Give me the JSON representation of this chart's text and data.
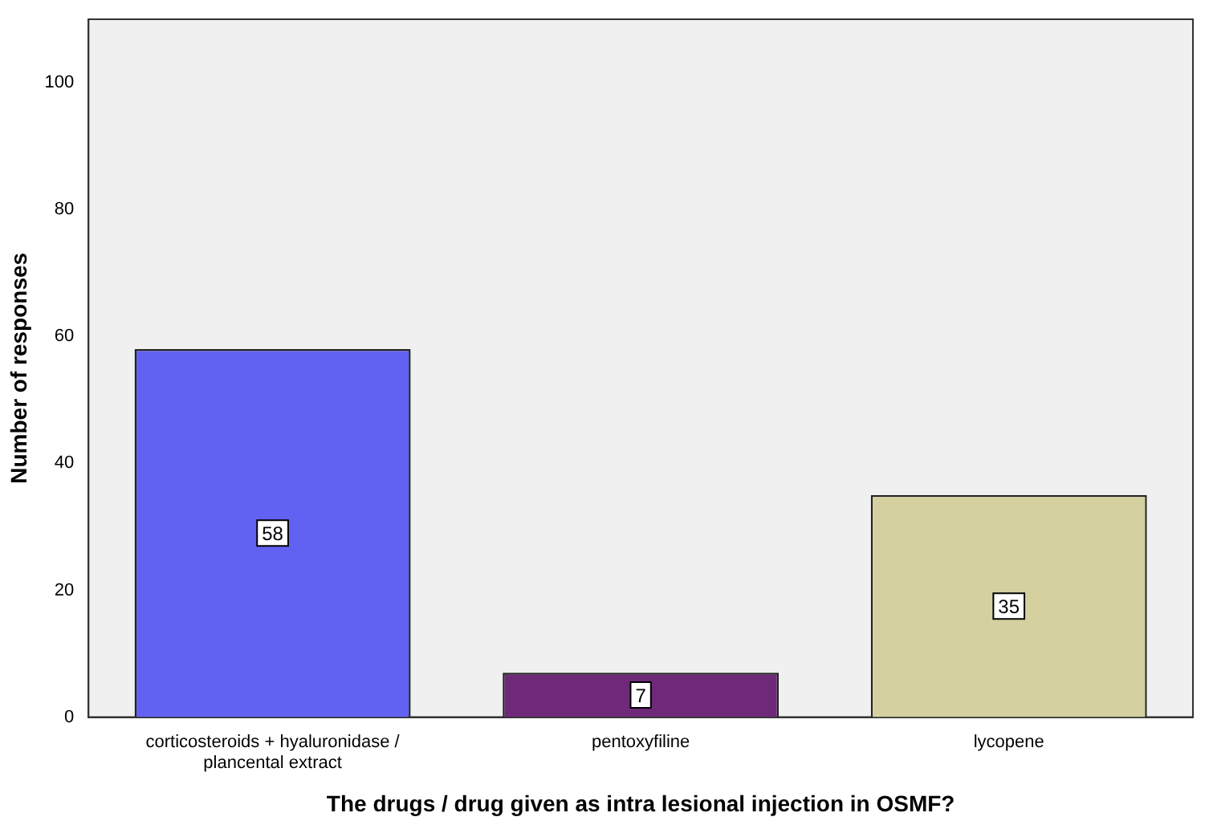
{
  "chart_data": {
    "type": "bar",
    "xlabel": "The drugs / drug given as intra lesional injection in OSMF?",
    "ylabel": "Number of responses",
    "categories": [
      "corticosteroids + hyaluronidase / plancental extract",
      "pentoxyfiline",
      "lycopene"
    ],
    "values": [
      58,
      7,
      35
    ],
    "colors": [
      "#6262f2",
      "#6e2a78",
      "#d4d0a0"
    ],
    "ylim": [
      0,
      110
    ],
    "yticks": [
      0,
      20,
      40,
      60,
      80,
      100
    ],
    "grid": false,
    "legend": false,
    "data_labels": true
  }
}
